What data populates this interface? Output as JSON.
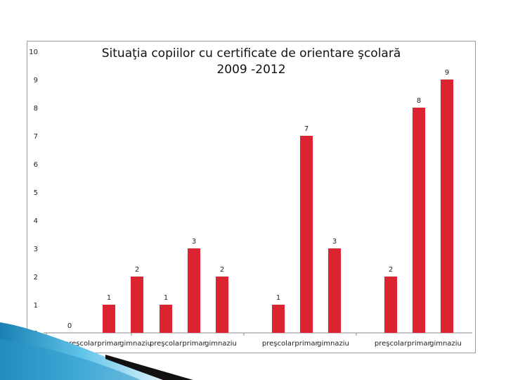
{
  "chart_data": {
    "type": "bar",
    "title": [
      "Situaţia copiilor cu certificate de orientare şcolară",
      "2009 -2012"
    ],
    "xlabel": "",
    "ylabel": "",
    "ylim": [
      0,
      10
    ],
    "yticks": [
      0,
      1,
      2,
      3,
      4,
      5,
      6,
      7,
      8,
      9,
      10
    ],
    "grid": false,
    "legend": "none",
    "bar_color": "#dc2433",
    "groups": [
      {
        "labels": [
          "preşcolar",
          "primar",
          "gimnaziu"
        ],
        "values": [
          0,
          1,
          2
        ]
      },
      {
        "labels": [
          "preşcolar",
          "primar",
          "gimnaziu"
        ],
        "values": [
          1,
          3,
          2
        ]
      },
      {
        "labels": [
          "preşcolar",
          "primar",
          "gimnaziu"
        ],
        "values": [
          1,
          7,
          3
        ]
      },
      {
        "labels": [
          "preşcolar",
          "primar",
          "gimnaziu"
        ],
        "values": [
          2,
          8,
          9
        ]
      }
    ]
  }
}
